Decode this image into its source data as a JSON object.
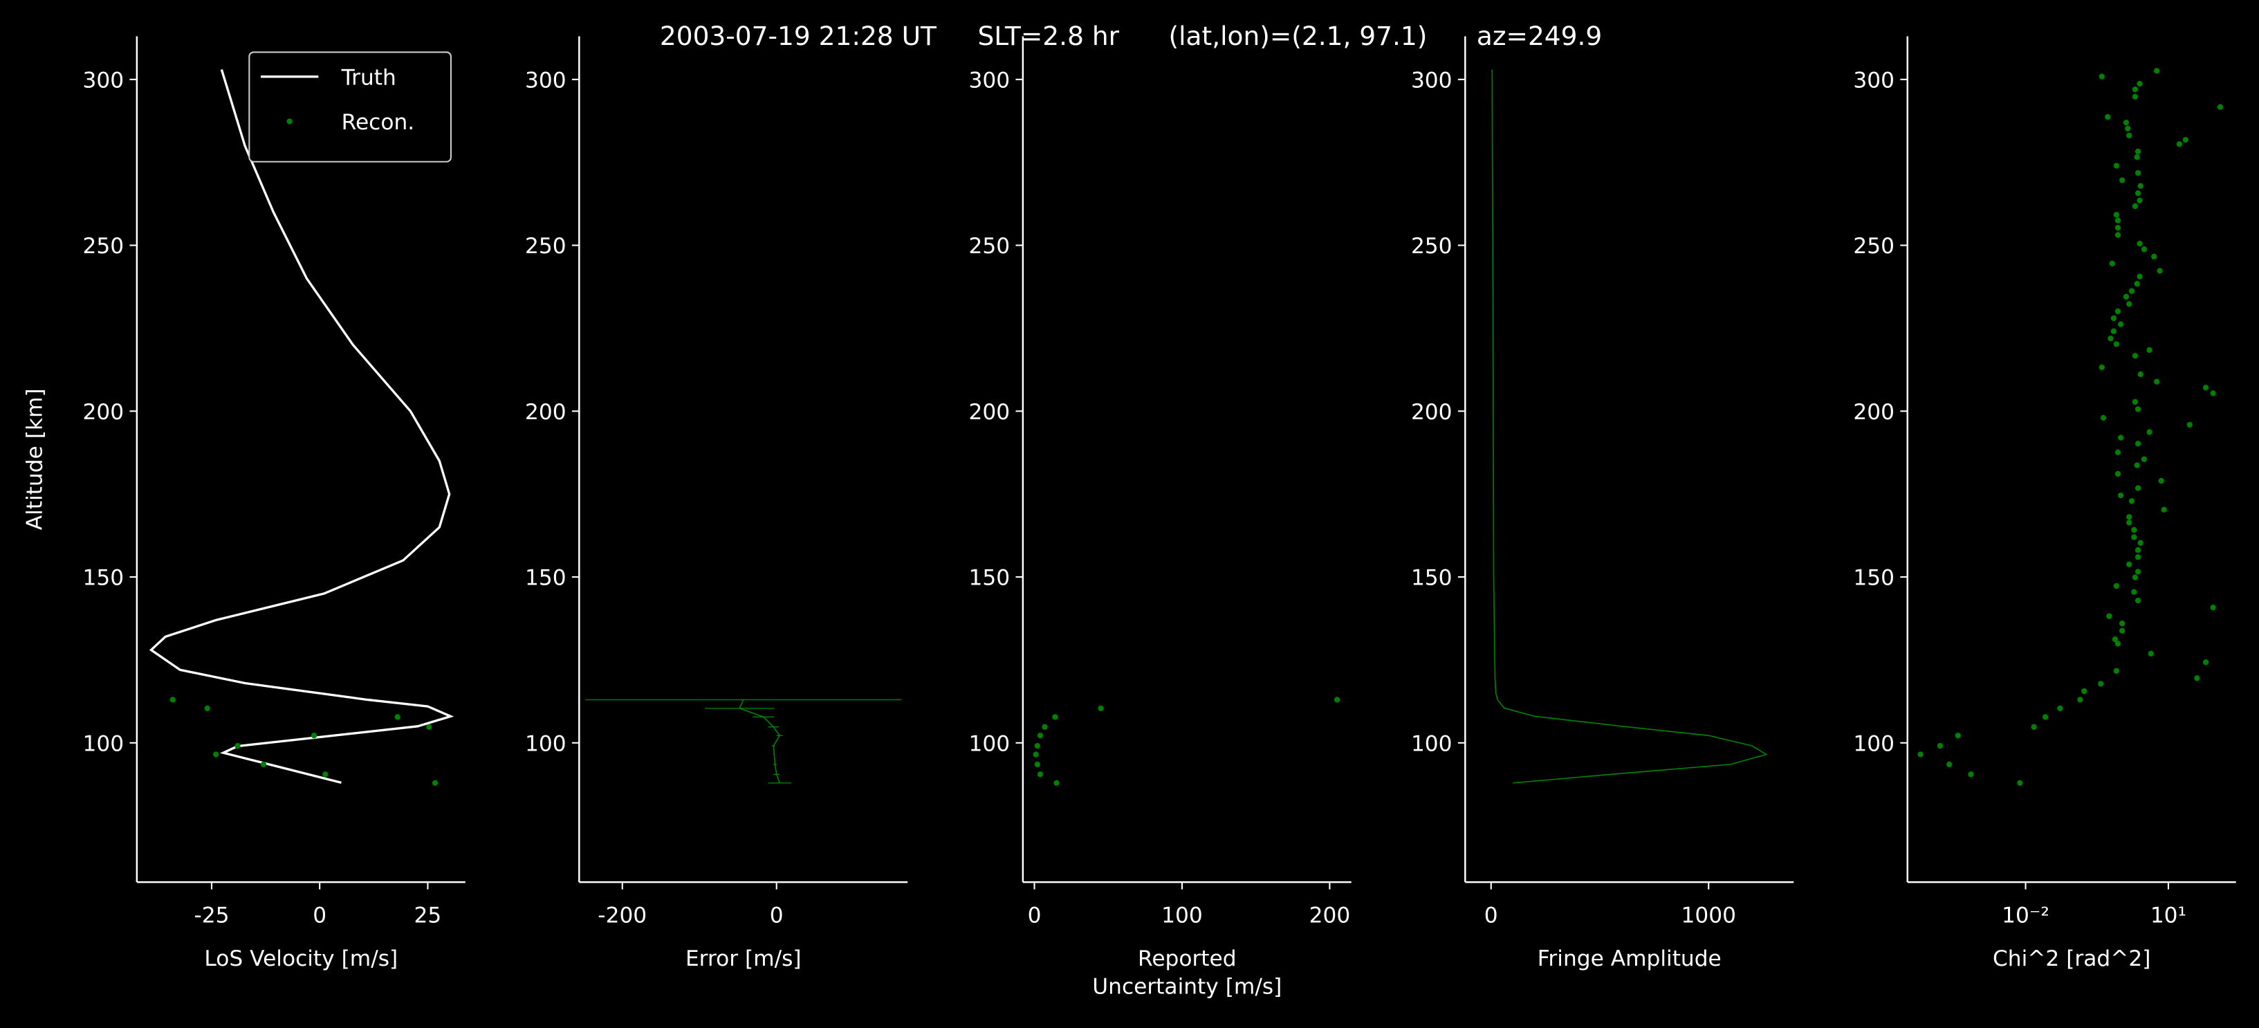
{
  "title": "2003-07-19 21:28 UT     SLT=2.8 hr      (lat,lon)=(2.1, 97.1)      az=249.9",
  "chart_data": [
    {
      "type": "line",
      "xlabel": "LoS Velocity [m/s]",
      "ylabel": "Altitude [km]",
      "xlim": [
        -42.3,
        33.7
      ],
      "ylim": [
        58,
        313
      ],
      "xticks": [
        -25,
        0,
        25
      ],
      "yticks": [
        100,
        150,
        200,
        250,
        300
      ],
      "legend": "upper right",
      "series": [
        {
          "name": "Truth",
          "color": "#ffffff",
          "style": "line",
          "x": [
            -22.7,
            -17.3,
            -10.7,
            -3,
            7.7,
            21,
            27.7,
            30,
            27.7,
            19.3,
            1,
            -24,
            -35.7,
            -39,
            -32.3,
            -17.3,
            11,
            25,
            30.3,
            22.7,
            -19,
            -22.3,
            5
          ],
          "y": [
            303,
            280,
            260,
            240,
            220,
            200,
            185,
            175,
            165,
            155,
            145,
            137,
            132,
            128,
            122,
            118,
            113,
            111,
            108,
            105,
            99,
            97,
            88
          ]
        },
        {
          "name": "Recon.",
          "color": "#008000",
          "style": "dots",
          "x": [
            -34,
            -26,
            18,
            25.3,
            -1.3,
            -19,
            -24,
            -13,
            1.3,
            26.7
          ],
          "y": [
            113,
            110.4,
            107.8,
            104.8,
            102.2,
            99.1,
            96.5,
            93.5,
            90.5,
            87.9
          ]
        }
      ]
    },
    {
      "type": "errorbar",
      "xlabel": "Error [m/s]",
      "xlim": [
        -256,
        170
      ],
      "ylim": [
        58,
        313
      ],
      "xticks": [
        -200,
        0
      ],
      "yticks": [
        100,
        150,
        200,
        250,
        300
      ],
      "series": [
        {
          "color": "#008000",
          "style": "line",
          "x": [
            -43,
            -48,
            -17,
            -4,
            4,
            -4,
            -3,
            -2,
            0,
            4
          ],
          "xerr": [
            205,
            45,
            14,
            7,
            4,
            2,
            1,
            2,
            4,
            15
          ],
          "y": [
            113,
            110.4,
            107.8,
            104.8,
            102.2,
            99.1,
            96.5,
            93.5,
            90.5,
            87.9
          ]
        }
      ]
    },
    {
      "type": "scatter",
      "xlabel": "Reported\nUncertainty [m/s]",
      "xlim": [
        -7.8,
        214.7
      ],
      "ylim": [
        58,
        313
      ],
      "xticks": [
        0,
        100,
        200
      ],
      "yticks": [
        100,
        150,
        200,
        250,
        300
      ],
      "series": [
        {
          "color": "#008000",
          "style": "dots",
          "x": [
            205,
            45,
            14,
            7,
            4,
            2,
            1,
            2,
            4,
            15
          ],
          "y": [
            113,
            110.4,
            107.8,
            104.8,
            102.2,
            99.1,
            96.5,
            93.5,
            90.5,
            87.9
          ]
        }
      ]
    },
    {
      "type": "line",
      "xlabel": "Fringe Amplitude",
      "xlim": [
        -119,
        1391
      ],
      "ylim": [
        58,
        313
      ],
      "xticks": [
        0,
        1000
      ],
      "yticks": [
        100,
        150,
        200,
        250,
        300
      ],
      "series": [
        {
          "color": "#008000",
          "style": "line",
          "x": [
            5,
            6,
            8,
            10,
            12,
            18,
            22,
            30,
            60,
            200,
            600,
            1000,
            1200,
            1265,
            1100,
            550,
            100
          ],
          "y": [
            303,
            280,
            250,
            200,
            150,
            120,
            115,
            113,
            110.5,
            108,
            105,
            102.2,
            99.1,
            96.5,
            93.5,
            90.5,
            87.9
          ]
        }
      ]
    },
    {
      "type": "scatter",
      "xlabel": "Chi^2 [rad^2]",
      "xscale": "log",
      "xlim": [
        3.3e-05,
        263
      ],
      "ylim": [
        58,
        313
      ],
      "xticks": [
        {
          "value": 0.01,
          "label": "10⁻²"
        },
        {
          "value": 10,
          "label": "10¹"
        }
      ],
      "yticks": [
        100,
        150,
        200,
        250,
        300
      ],
      "series": [
        {
          "color": "#008000",
          "style": "dots",
          "x": [
            5.7,
            0.4,
            2.5,
            2.0,
            2.0,
            123,
            0.53,
            1.3,
            1.4,
            1.5,
            23,
            17,
            2.3,
            2.2,
            0.81,
            2.3,
            1.07,
            2.6,
            2.3,
            2.5,
            2.0,
            0.81,
            0.87,
            0.87,
            0.87,
            2.5,
            3.1,
            5.0,
            0.66,
            6.6,
            2.5,
            2.2,
            1.7,
            1.3,
            1.5,
            0.87,
            0.71,
            1.0,
            0.71,
            0.61,
            0.81,
            4.0,
            2.0,
            0.4,
            2.6,
            5.7,
            61,
            87,
            2.0,
            2.3,
            0.43,
            28,
            4.0,
            1.0,
            2.3,
            0.87,
            3.1,
            2.2,
            0.87,
            7.1,
            2.3,
            1.0,
            1.7,
            8.1,
            1.5,
            1.5,
            1.9,
            1.9,
            2.6,
            2.3,
            2.3,
            1.5,
            2.3,
            2.0,
            0.81,
            1.9,
            2.3,
            87,
            0.57,
            1.07,
            1.07,
            0.76,
            0.87,
            4.3,
            61,
            0.81,
            40,
            0.38,
            0.17,
            0.14,
            0.053,
            0.026,
            0.015,
            0.00038,
            0.00016,
            6.2e-05,
            0.00025,
            0.00071,
            0.0076
          ],
          "y": [
            302.6,
            300.9,
            298.7,
            297.0,
            294.8,
            291.7,
            288.7,
            287.0,
            285.2,
            283.1,
            281.8,
            280.5,
            278.3,
            276.6,
            274.0,
            271.8,
            269.6,
            267.9,
            265.7,
            263.5,
            261.8,
            259.2,
            257.5,
            255.3,
            253.1,
            250.5,
            248.8,
            246.6,
            244.5,
            242.3,
            240.6,
            238.4,
            236.2,
            234.5,
            232.3,
            230.1,
            228.0,
            226.2,
            224.1,
            221.9,
            220.2,
            218.4,
            216.7,
            213.2,
            211.1,
            208.9,
            207.1,
            205.4,
            202.8,
            200.6,
            198.0,
            195.9,
            193.7,
            192.0,
            190.2,
            187.6,
            185.5,
            183.7,
            181.1,
            179.0,
            176.8,
            174.6,
            172.9,
            170.3,
            168.1,
            166.4,
            164.2,
            162.0,
            160.3,
            158.1,
            156.0,
            153.8,
            151.6,
            149.9,
            147.3,
            145.5,
            142.9,
            140.8,
            138.2,
            136.0,
            133.8,
            131.2,
            129.9,
            126.9,
            124.3,
            121.7,
            119.5,
            117.8,
            115.6,
            113.0,
            110.4,
            107.8,
            104.8,
            102.2,
            99.1,
            96.5,
            93.5,
            90.5,
            87.9
          ]
        }
      ]
    }
  ]
}
